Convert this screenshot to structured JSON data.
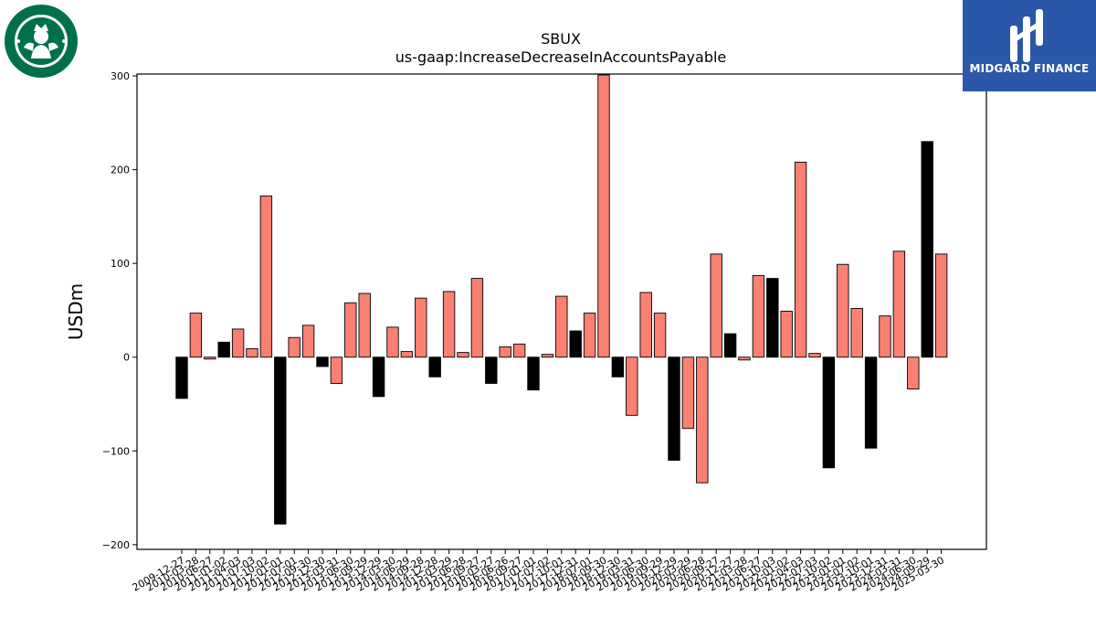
{
  "header": {
    "title_line1": "SBUX",
    "title_line2": "us-gaap:IncreaseDecreaseInAccountsPayable"
  },
  "logos": {
    "left": {
      "icon": "starbucks-siren-logo",
      "color": "#00704A"
    },
    "right": {
      "text": "MIDGARD FINANCE",
      "icon": "midgard-finance-logo",
      "background": "#2B57A8"
    }
  },
  "colors": {
    "positive_change": "#FA8072",
    "negative_change": "#000000",
    "edge": "#000000"
  },
  "chart_data": {
    "type": "bar",
    "title": "SBUX\nus-gaap:IncreaseDecreaseInAccountsPayable",
    "xlabel": "",
    "ylabel": "USDm",
    "ylim": [
      -205,
      302
    ],
    "yticks": [
      -200,
      -100,
      0,
      100,
      200,
      300
    ],
    "grid": false,
    "categories": [
      "2009-12-27",
      "2010-03-28",
      "2010-06-27",
      "2011-01-02",
      "2011-04-03",
      "2011-07-03",
      "2011-10-02",
      "2012-01-01",
      "2012-07-01",
      "2012-09-30",
      "2012-12-30",
      "2013-03-31",
      "2013-06-30",
      "2013-09-29",
      "2013-12-29",
      "2014-03-30",
      "2014-06-29",
      "2014-09-28",
      "2014-12-28",
      "2015-03-29",
      "2015-06-28",
      "2015-09-27",
      "2016-03-27",
      "2016-06-26",
      "2016-09-27",
      "2017-01-01",
      "2017-07-02",
      "2017-10-01",
      "2017-12-31",
      "2018-07-01",
      "2018-09-30",
      "2018-12-30",
      "2019-03-31",
      "2019-06-30",
      "2019-09-29",
      "2019-12-29",
      "2020-03-29",
      "2020-06-28",
      "2020-09-27",
      "2020-12-27",
      "2021-03-28",
      "2021-06-27",
      "2021-10-03",
      "2022-01-02",
      "2022-04-03",
      "2022-07-03",
      "2022-10-02",
      "2023-01-01",
      "2023-07-02",
      "2023-10-01",
      "2023-12-31",
      "2024-03-31",
      "2024-06-30",
      "2024-09-29",
      "2025-03-30"
    ],
    "values": [
      -44,
      47,
      -2,
      16,
      30,
      9,
      172,
      -178,
      21,
      34,
      -10,
      -28,
      58,
      68,
      -42,
      32,
      6,
      63,
      -21,
      70,
      5,
      84,
      -28,
      11,
      14,
      -35,
      3,
      65,
      28,
      47,
      301,
      -21,
      -62,
      69,
      47,
      -110,
      -76,
      -134,
      110,
      25,
      -3,
      87,
      84,
      49,
      208,
      4,
      -118,
      99,
      52,
      -97,
      44,
      113,
      -34,
      230,
      110
    ],
    "bar_fill": [
      "#000000",
      "#FA8072",
      "#FA8072",
      "#000000",
      "#FA8072",
      "#FA8072",
      "#FA8072",
      "#000000",
      "#FA8072",
      "#FA8072",
      "#000000",
      "#FA8072",
      "#FA8072",
      "#FA8072",
      "#000000",
      "#FA8072",
      "#FA8072",
      "#FA8072",
      "#000000",
      "#FA8072",
      "#FA8072",
      "#FA8072",
      "#000000",
      "#FA8072",
      "#FA8072",
      "#000000",
      "#FA8072",
      "#FA8072",
      "#000000",
      "#FA8072",
      "#FA8072",
      "#000000",
      "#FA8072",
      "#FA8072",
      "#FA8072",
      "#000000",
      "#FA8072",
      "#FA8072",
      "#FA8072",
      "#000000",
      "#FA8072",
      "#FA8072",
      "#000000",
      "#FA8072",
      "#FA8072",
      "#FA8072",
      "#000000",
      "#FA8072",
      "#FA8072",
      "#000000",
      "#FA8072",
      "#FA8072",
      "#FA8072",
      "#000000",
      "#FA8072"
    ]
  }
}
